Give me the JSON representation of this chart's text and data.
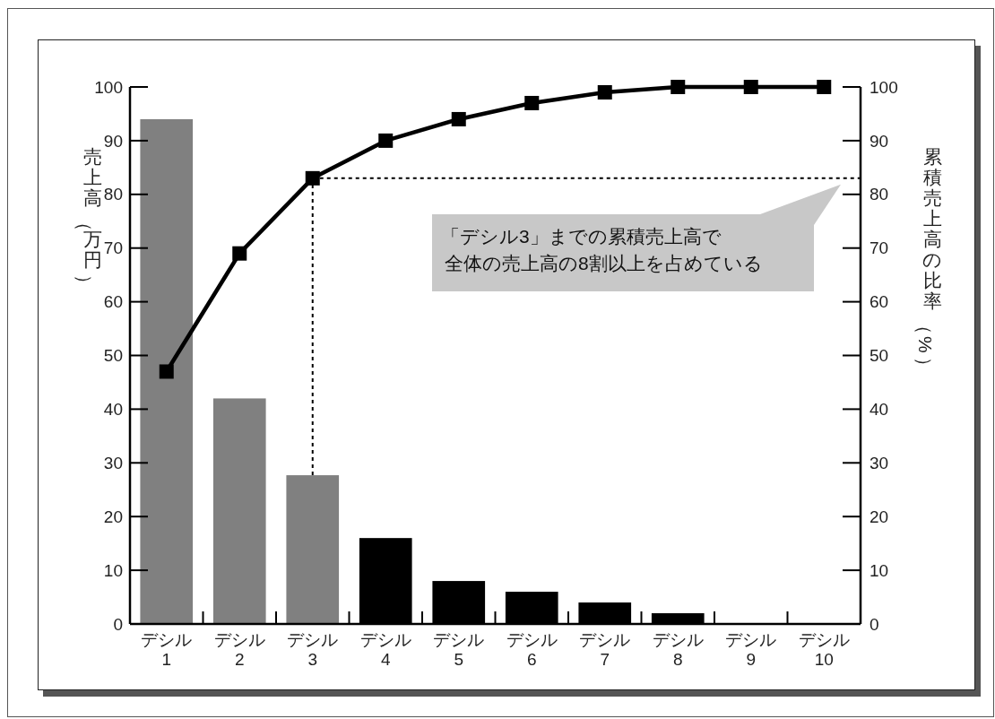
{
  "chart_data": {
    "type": "bar",
    "categories": [
      "デシル\n1",
      "デシル\n2",
      "デシル\n3",
      "デシル\n4",
      "デシル\n5",
      "デシル\n6",
      "デシル\n7",
      "デシル\n8",
      "デシル\n9",
      "デシル\n10"
    ],
    "series": [
      {
        "colors": [
          "#808080",
          "#808080",
          "#808080",
          "#000000",
          "#000000",
          "#000000",
          "#000000",
          "#000000",
          "#000000",
          "#000000"
        ],
        "values": [
          94,
          42,
          27.7,
          16,
          8,
          6,
          4,
          2,
          0,
          0
        ]
      },
      {
        "type": "line",
        "axis": "y2",
        "color": "#000000",
        "values": [
          47,
          69,
          83,
          90,
          94,
          97,
          99,
          100,
          100,
          100
        ]
      }
    ],
    "ylabel": "売上高（万円）",
    "y2label": "累積売上高の比率（%）",
    "ylim": [
      0,
      100
    ],
    "yticks": [
      0,
      10,
      20,
      30,
      40,
      50,
      60,
      70,
      80,
      90,
      100
    ],
    "y2lim": [
      0,
      100
    ],
    "y2ticks": [
      0,
      10,
      20,
      30,
      40,
      50,
      60,
      70,
      80,
      90,
      100
    ],
    "marker": "square",
    "line_style": "solid",
    "grid": false,
    "ref_lines": [
      {
        "axis": "y2",
        "value": 83,
        "line_style": "dashed",
        "color": "#000000"
      },
      {
        "axis": "x",
        "value": "デシル\n3",
        "line_style": "dashed",
        "color": "#000000"
      }
    ],
    "annotations": [
      "「デシル3」までの累積売上高で",
      "全体の売上高の8割以上を占めている"
    ]
  }
}
